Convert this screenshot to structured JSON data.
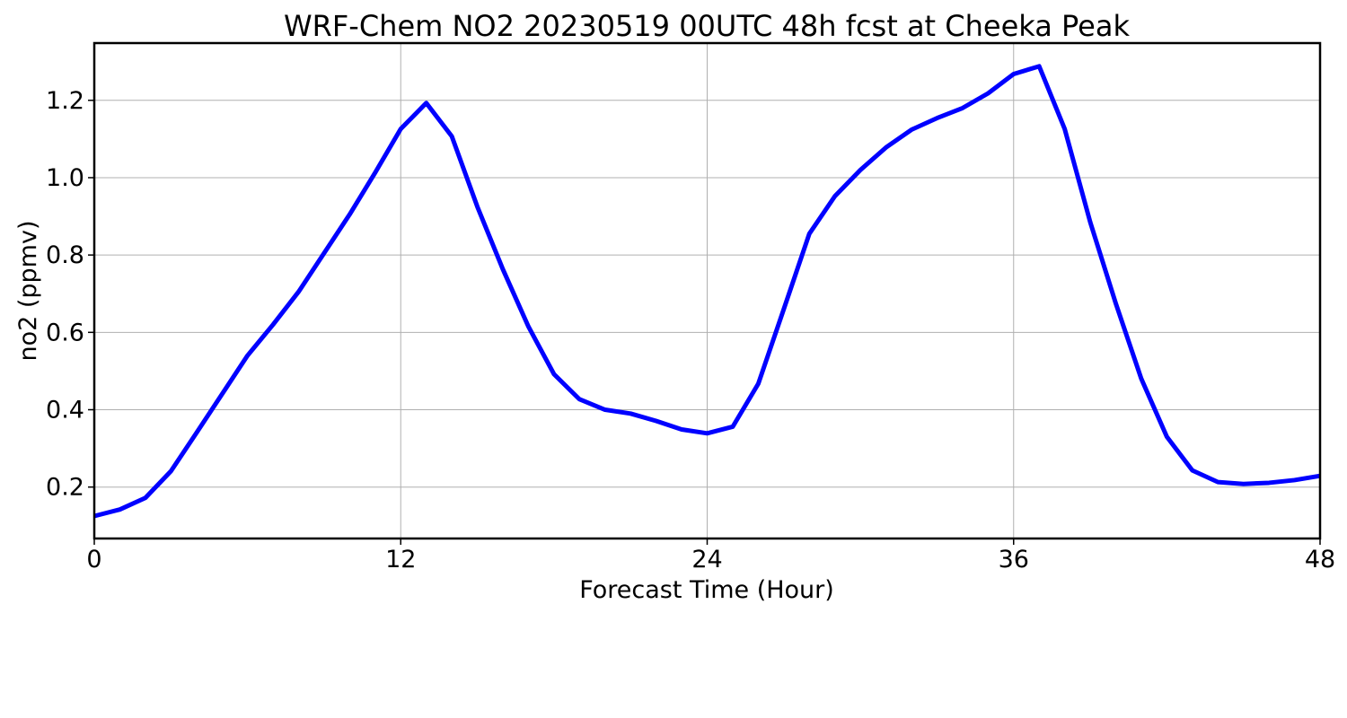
{
  "chart_data": {
    "type": "line",
    "title": "WRF-Chem NO2  20230519 00UTC 48h fcst at Cheeka Peak",
    "xlabel": "Forecast Time (Hour)",
    "ylabel": "no2  (ppmv)",
    "xlim": [
      0,
      48
    ],
    "ylim": [
      0.067,
      1.348
    ],
    "xticks": [
      0,
      12,
      24,
      36,
      48
    ],
    "xtick_labels": [
      "0",
      "12",
      "24",
      "36",
      "48"
    ],
    "yticks": [
      0.2,
      0.4,
      0.6,
      0.8,
      1.0,
      1.2
    ],
    "ytick_labels": [
      "0.2",
      "0.4",
      "0.6",
      "0.8",
      "1.0",
      "1.2"
    ],
    "grid": true,
    "legend": "none",
    "series": [
      {
        "color": "#0000ff",
        "x": [
          0,
          1,
          2,
          3,
          4,
          5,
          6,
          7,
          8,
          9,
          10,
          11,
          12,
          13,
          14,
          15,
          16,
          17,
          18,
          19,
          20,
          21,
          22,
          23,
          24,
          25,
          26,
          27,
          28,
          29,
          30,
          31,
          32,
          33,
          34,
          35,
          36,
          37,
          38,
          39,
          40,
          41,
          42,
          43,
          44,
          45,
          46,
          47,
          48
        ],
        "y": [
          0.125,
          0.142,
          0.172,
          0.241,
          0.34,
          0.44,
          0.54,
          0.62,
          0.705,
          0.805,
          0.905,
          1.013,
          1.126,
          1.193,
          1.107,
          0.925,
          0.763,
          0.615,
          0.492,
          0.427,
          0.4,
          0.39,
          0.371,
          0.349,
          0.339,
          0.356,
          0.467,
          0.66,
          0.855,
          0.952,
          1.02,
          1.078,
          1.124,
          1.154,
          1.18,
          1.218,
          1.268,
          1.288,
          1.126,
          0.885,
          0.675,
          0.48,
          0.33,
          0.243,
          0.213,
          0.208,
          0.211,
          0.218,
          0.229
        ]
      }
    ]
  }
}
